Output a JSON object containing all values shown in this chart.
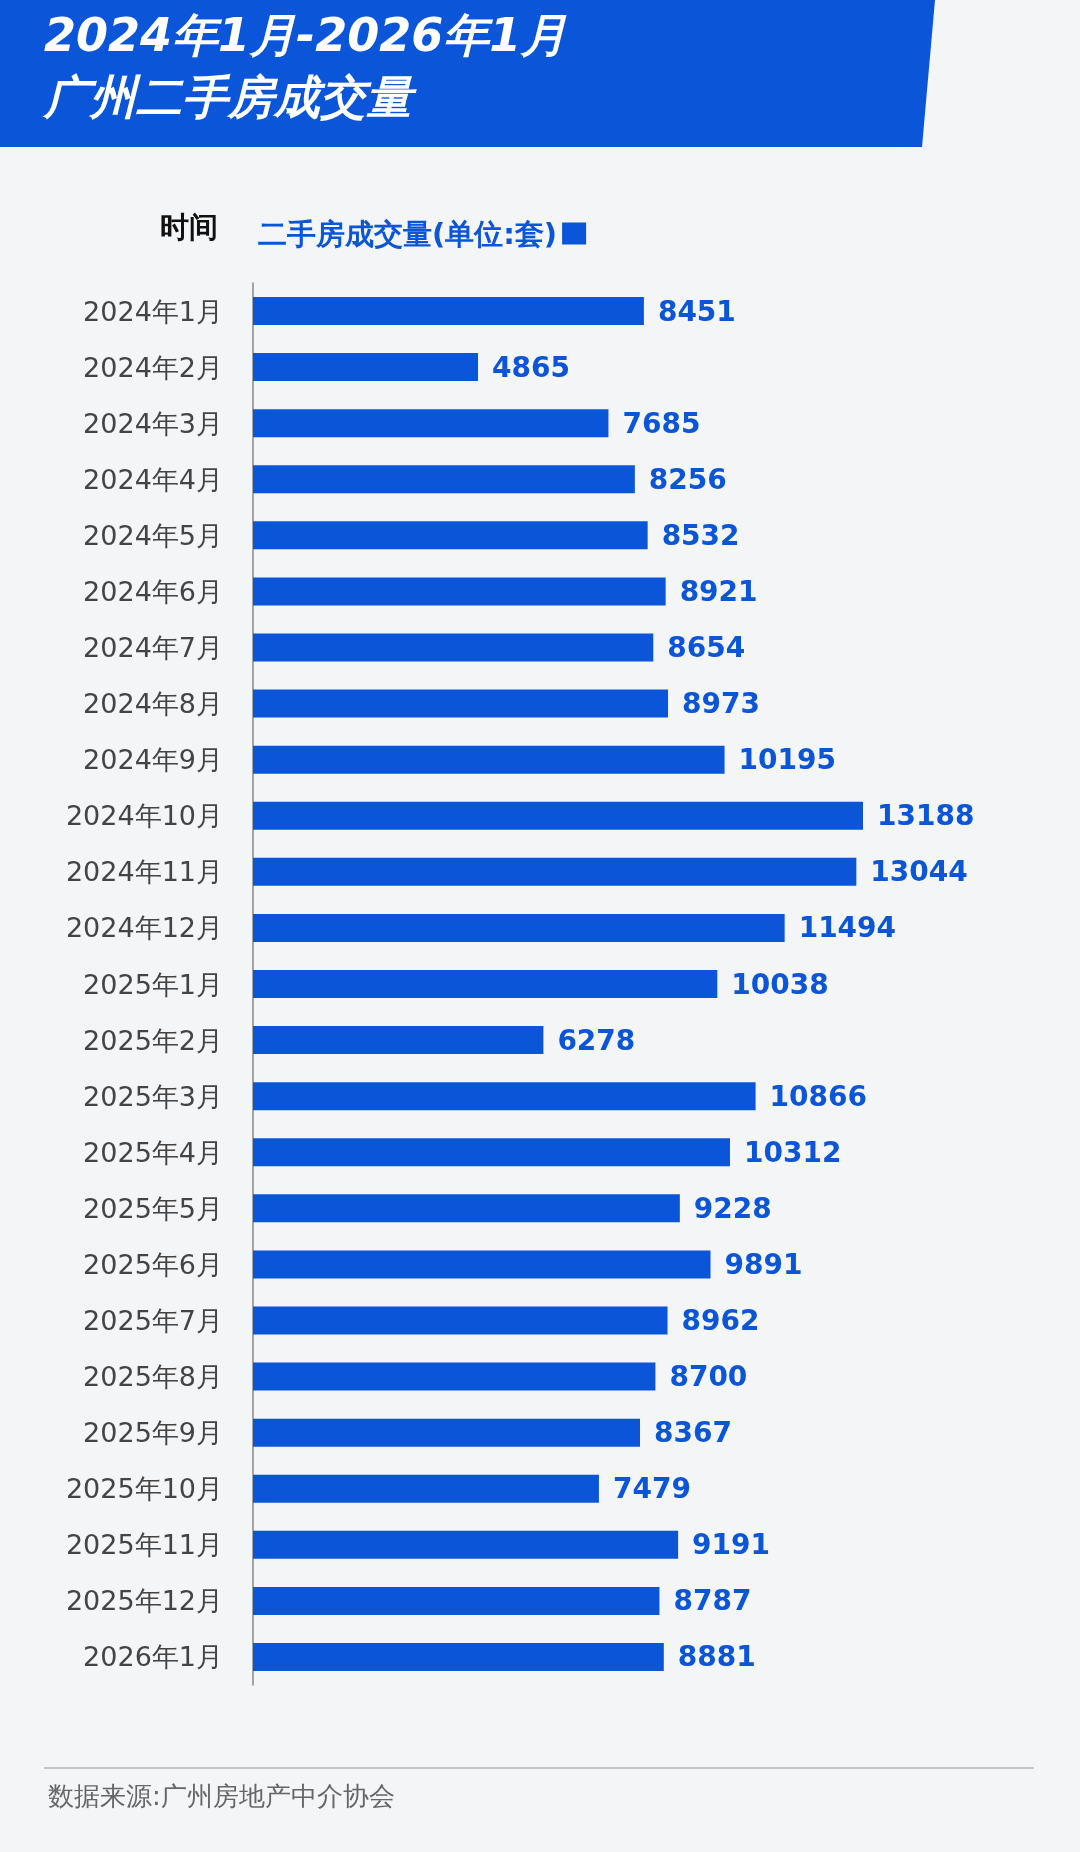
{
  "chart_data": {
    "type": "bar",
    "orientation": "horizontal",
    "title": "2024年1月-2026年1月",
    "subtitle": "广州二手房成交量",
    "ylabel": "时间",
    "legend": "top left",
    "data_labels": true,
    "categories": [
      "2024年1月",
      "2024年2月",
      "2024年3月",
      "2024年4月",
      "2024年5月",
      "2024年6月",
      "2024年7月",
      "2024年8月",
      "2024年9月",
      "2024年10月",
      "2024年11月",
      "2024年12月",
      "2025年1月",
      "2025年2月",
      "2025年3月",
      "2025年4月",
      "2025年5月",
      "2025年6月",
      "2025年7月",
      "2025年8月",
      "2025年9月",
      "2025年10月",
      "2025年11月",
      "2025年12月",
      "2026年1月"
    ],
    "series": [
      {
        "name": "二手房成交量(单位:套)",
        "color": "#0b55d9",
        "values": [
          8451,
          4865,
          7685,
          8256,
          8532,
          8921,
          8654,
          8973,
          10195,
          13188,
          13044,
          11494,
          10038,
          6278,
          10866,
          10312,
          9228,
          9891,
          8962,
          8700,
          8367,
          7479,
          9191,
          8787,
          8881
        ]
      }
    ],
    "annotations": [
      "数据来源:广州房地产中介协会"
    ]
  }
}
